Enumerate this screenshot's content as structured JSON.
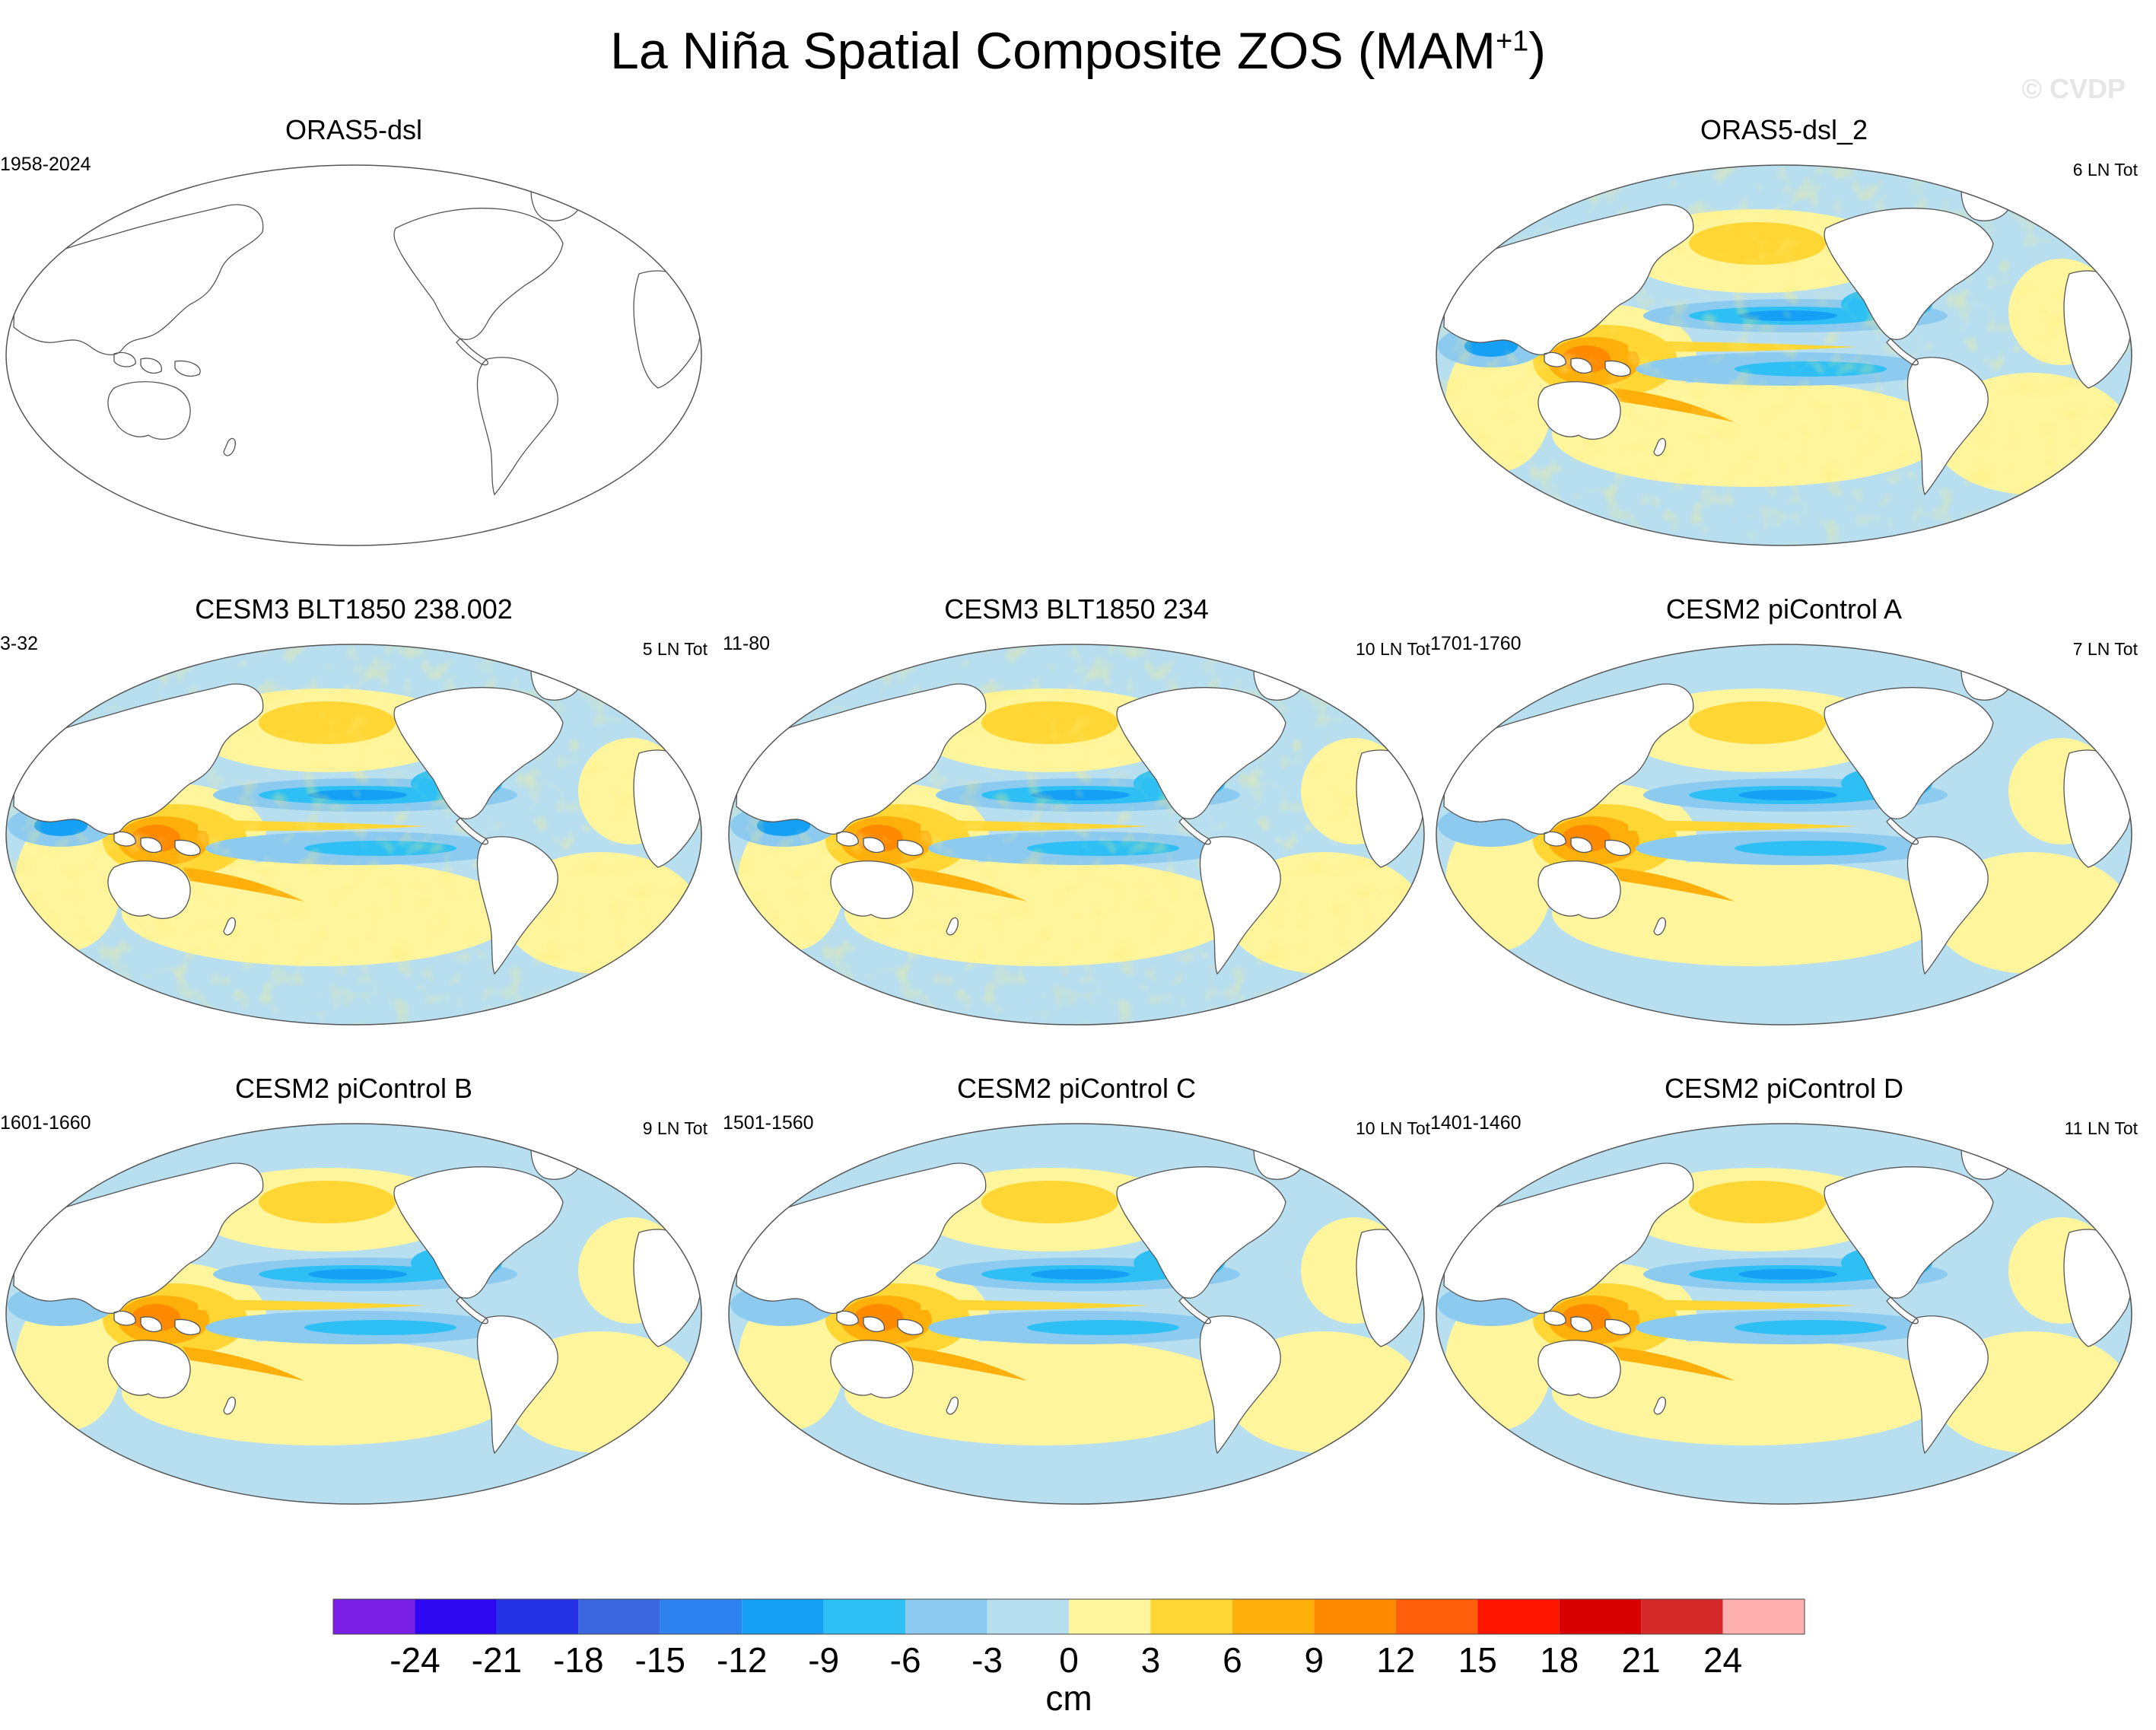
{
  "title": {
    "text": "La Niña Spatial Composite ZOS (MAM",
    "superscript": "+1",
    "suffix": ")"
  },
  "watermark": "© CVDP",
  "colors": {
    "n24": "#7a1fe6",
    "n21": "#2c07f0",
    "n18": "#2433e6",
    "n15": "#3a66e0",
    "n12": "#2e82f0",
    "n9": "#16a0f5",
    "n6": "#2ec0f5",
    "n3": "#8ccaf0",
    "n0": "#b8dff0",
    "p0": "#fff59c",
    "p3": "#ffd633",
    "p6": "#ffaf0a",
    "p9": "#ff8a00",
    "p12": "#ff5e0a",
    "p15": "#ff1500",
    "p18": "#d90000",
    "p21": "#d62a2a",
    "p24": "#ffb0b0"
  },
  "panels": [
    {
      "id": "oras5-dsl",
      "title": "ORAS5-dsl",
      "years": "1958-2024",
      "count": "",
      "filled": false
    },
    {
      "id": "oras5-dsl-2",
      "title": "ORAS5-dsl_2",
      "years": "",
      "count": "6 LN Tot",
      "filled": true,
      "style": "noisy"
    },
    {
      "id": "cesm3-238",
      "title": "CESM3 BLT1850 238.002",
      "years": "3-32",
      "count": "5 LN Tot",
      "filled": true,
      "style": "noisy"
    },
    {
      "id": "cesm3-234",
      "title": "CESM3 BLT1850 234",
      "years": "11-80",
      "count": "10 LN Tot",
      "filled": true,
      "style": "noisy"
    },
    {
      "id": "cesm2-a",
      "title": "CESM2 piControl A",
      "years": "1701-1760",
      "count": "7 LN Tot",
      "filled": true,
      "style": "smooth"
    },
    {
      "id": "cesm2-b",
      "title": "CESM2 piControl B",
      "years": "1601-1660",
      "count": "9 LN Tot",
      "filled": true,
      "style": "smooth"
    },
    {
      "id": "cesm2-c",
      "title": "CESM2 piControl C",
      "years": "1501-1560",
      "count": "10 LN Tot",
      "filled": true,
      "style": "smooth"
    },
    {
      "id": "cesm2-d",
      "title": "CESM2 piControl D",
      "years": "1401-1460",
      "count": "11 LN Tot",
      "filled": true,
      "style": "smooth"
    }
  ],
  "colorbar": {
    "labels": [
      "-24",
      "-21",
      "-18",
      "-15",
      "-12",
      "-9",
      "-6",
      "-3",
      "0",
      "3",
      "6",
      "9",
      "12",
      "15",
      "18",
      "21",
      "24"
    ],
    "unit": "cm"
  }
}
